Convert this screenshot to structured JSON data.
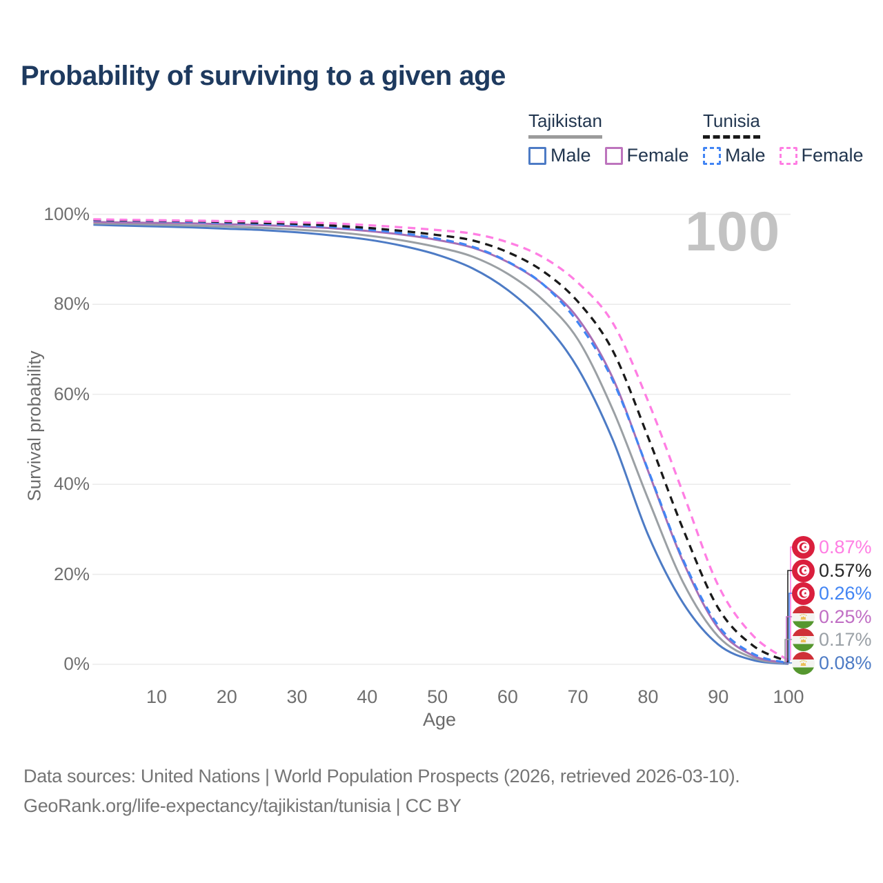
{
  "header": {
    "title": "Probability of surviving to a given age"
  },
  "legend": {
    "tajikistan": {
      "title": "Tajikistan",
      "underline_style": "solid",
      "underline_color": "#9b9b9b",
      "items": [
        {
          "label": "Male",
          "color": "#4d7bc5",
          "line_style": "solid"
        },
        {
          "label": "Female",
          "color": "#bd74bd",
          "line_style": "solid"
        }
      ]
    },
    "tunisia": {
      "title": "Tunisia",
      "underline_style": "dashed",
      "underline_color": "#1a1a1a",
      "items": [
        {
          "label": "Male",
          "color": "#4285f4",
          "line_style": "dashed"
        },
        {
          "label": "Female",
          "color": "#ff7ee3",
          "line_style": "dashed"
        }
      ]
    }
  },
  "chart_data": {
    "type": "line",
    "title": "Probability of surviving to a given age",
    "xlabel": "Age",
    "ylabel": "Survival probability",
    "xlim": [
      0,
      100
    ],
    "ylim": [
      0,
      100
    ],
    "xticks": [
      10,
      20,
      30,
      40,
      50,
      60,
      70,
      80,
      90,
      100
    ],
    "yticks": [
      0,
      20,
      40,
      60,
      80,
      100
    ],
    "ytick_suffix": "%",
    "grid": "horizontal",
    "legend_position": "top-right",
    "hover_age_watermark": "100",
    "x": [
      1,
      5,
      10,
      15,
      20,
      25,
      30,
      35,
      40,
      45,
      50,
      55,
      60,
      65,
      70,
      75,
      80,
      85,
      90,
      95,
      100
    ],
    "series": [
      {
        "id": "tajikistan-male",
        "name": "Tajikistan Male",
        "country": "Tajikistan",
        "sex": "Male",
        "line_style": "solid",
        "color": "#4d7bc5",
        "values": [
          97.7,
          97.5,
          97.3,
          97.1,
          96.8,
          96.5,
          96.0,
          95.3,
          94.4,
          93.0,
          91.0,
          88.0,
          83.2,
          76.2,
          65.8,
          49.8,
          28.8,
          13.6,
          4.4,
          0.9,
          0.08
        ]
      },
      {
        "id": "tajikistan-both",
        "name": "Tajikistan Both sexes",
        "country": "Tajikistan",
        "sex": "Both",
        "line_style": "solid",
        "color": "#9ba0a4",
        "values": [
          98.0,
          97.9,
          97.7,
          97.5,
          97.3,
          97.0,
          96.6,
          96.1,
          95.3,
          94.2,
          92.7,
          90.6,
          86.8,
          81.0,
          72.2,
          56.5,
          36.8,
          18.2,
          6.2,
          1.4,
          0.17
        ]
      },
      {
        "id": "tajikistan-female",
        "name": "Tajikistan Female",
        "country": "Tajikistan",
        "sex": "Female",
        "line_style": "solid",
        "color": "#a86fb5",
        "values": [
          98.3,
          98.2,
          98.1,
          98.0,
          97.8,
          97.6,
          97.3,
          96.9,
          96.3,
          95.5,
          94.3,
          92.6,
          89.4,
          84.5,
          76.9,
          63.5,
          43.0,
          22.8,
          8.0,
          1.9,
          0.25
        ]
      },
      {
        "id": "tunisia-male",
        "name": "Tunisia Male",
        "country": "Tunisia",
        "sex": "Male",
        "line_style": "dashed",
        "color": "#4285f4",
        "values": [
          98.7,
          98.6,
          98.5,
          98.3,
          98.1,
          97.9,
          97.6,
          97.2,
          96.6,
          95.8,
          94.6,
          92.8,
          89.5,
          84.5,
          76.0,
          63.0,
          43.2,
          23.2,
          8.6,
          2.3,
          0.26
        ]
      },
      {
        "id": "tunisia-both",
        "name": "Tunisia Both sexes",
        "country": "Tunisia",
        "sex": "Both",
        "line_style": "dashed",
        "color": "#1a1a1a",
        "values": [
          98.8,
          98.7,
          98.6,
          98.5,
          98.3,
          98.1,
          97.9,
          97.5,
          97.0,
          96.3,
          95.4,
          94.2,
          91.6,
          87.4,
          80.6,
          69.6,
          50.5,
          30.0,
          12.5,
          4.1,
          0.57
        ]
      },
      {
        "id": "tunisia-female",
        "name": "Tunisia Female",
        "country": "Tunisia",
        "sex": "Female",
        "line_style": "dashed",
        "color": "#ff7ee3",
        "values": [
          98.9,
          98.8,
          98.7,
          98.6,
          98.5,
          98.4,
          98.2,
          98.0,
          97.6,
          97.1,
          96.5,
          95.7,
          93.8,
          90.5,
          84.8,
          75.8,
          58.5,
          38.0,
          17.5,
          6.3,
          0.87
        ]
      }
    ],
    "end_labels": [
      {
        "series": "tunisia-female",
        "value": "0.87%",
        "color": "#ff7ee3",
        "flag": "tunisia"
      },
      {
        "series": "tunisia-both",
        "value": "0.57%",
        "color": "#262626",
        "flag": "tunisia"
      },
      {
        "series": "tunisia-male",
        "value": "0.26%",
        "color": "#4285f4",
        "flag": "tunisia"
      },
      {
        "series": "tajikistan-female",
        "value": "0.25%",
        "color": "#c06ec4",
        "flag": "tajikistan"
      },
      {
        "series": "tajikistan-both",
        "value": "0.17%",
        "color": "#9aa0a6",
        "flag": "tajikistan"
      },
      {
        "series": "tajikistan-male",
        "value": "0.08%",
        "color": "#4d7bc5",
        "flag": "tajikistan"
      }
    ]
  },
  "footer": {
    "line1": "Data sources: United Nations | World Population Prospects (2026, retrieved 2026-03-10).",
    "line2": "GeoRank.org/life-expectancy/tajikistan/tunisia | CC BY"
  }
}
